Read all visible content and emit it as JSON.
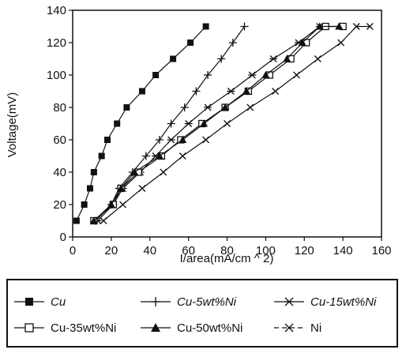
{
  "chart_data": {
    "type": "line",
    "title": "",
    "xlabel": "I/area(mA/cm ^ 2)",
    "ylabel": "Voltage(mV)",
    "xlim": [
      0,
      160
    ],
    "ylim": [
      0,
      140
    ],
    "xticks": [
      0,
      20,
      40,
      60,
      80,
      100,
      120,
      140,
      160
    ],
    "yticks": [
      0,
      20,
      40,
      60,
      80,
      100,
      120,
      140
    ],
    "grid": false,
    "legend_position": "bottom",
    "series": [
      {
        "name": "Cu",
        "marker": "filled-square",
        "points": [
          [
            2,
            10
          ],
          [
            6,
            20
          ],
          [
            9,
            30
          ],
          [
            11,
            40
          ],
          [
            15,
            50
          ],
          [
            18,
            60
          ],
          [
            23,
            70
          ],
          [
            28,
            80
          ],
          [
            36,
            90
          ],
          [
            43,
            100
          ],
          [
            52,
            110
          ],
          [
            61,
            120
          ],
          [
            69,
            130
          ]
        ]
      },
      {
        "name": "Cu-5wt%Ni",
        "marker": "plus",
        "points": [
          [
            12,
            10
          ],
          [
            20,
            20
          ],
          [
            24,
            30
          ],
          [
            31,
            40
          ],
          [
            38,
            50
          ],
          [
            45,
            60
          ],
          [
            51,
            70
          ],
          [
            58,
            80
          ],
          [
            64,
            90
          ],
          [
            70,
            100
          ],
          [
            77,
            110
          ],
          [
            83,
            120
          ],
          [
            89,
            130
          ]
        ]
      },
      {
        "name": "Cu-15wt%Ni",
        "marker": "asterisk",
        "points": [
          [
            13,
            10
          ],
          [
            21,
            20
          ],
          [
            26,
            30
          ],
          [
            35,
            40
          ],
          [
            43,
            50
          ],
          [
            51,
            60
          ],
          [
            60,
            70
          ],
          [
            70,
            80
          ],
          [
            82,
            90
          ],
          [
            93,
            100
          ],
          [
            104,
            110
          ],
          [
            117,
            120
          ],
          [
            128,
            130
          ]
        ]
      },
      {
        "name": "Cu-35wt%Ni",
        "marker": "open-square",
        "points": [
          [
            11,
            10
          ],
          [
            21,
            20
          ],
          [
            25,
            30
          ],
          [
            34,
            40
          ],
          [
            46,
            50
          ],
          [
            56,
            60
          ],
          [
            67,
            70
          ],
          [
            79,
            80
          ],
          [
            91,
            90
          ],
          [
            102,
            100
          ],
          [
            113,
            110
          ],
          [
            121,
            120
          ],
          [
            131,
            130
          ],
          [
            140,
            130
          ]
        ]
      },
      {
        "name": "Cu-50wt%Ni",
        "marker": "filled-triangle",
        "points": [
          [
            11,
            10
          ],
          [
            20,
            20
          ],
          [
            25,
            30
          ],
          [
            32,
            40
          ],
          [
            45,
            50
          ],
          [
            57,
            60
          ],
          [
            68,
            70
          ],
          [
            79,
            80
          ],
          [
            90,
            90
          ],
          [
            100,
            100
          ],
          [
            111,
            110
          ],
          [
            119,
            120
          ],
          [
            128,
            130
          ],
          [
            138,
            130
          ]
        ]
      },
      {
        "name": "Ni",
        "marker": "x",
        "points": [
          [
            16,
            10
          ],
          [
            26,
            20
          ],
          [
            36,
            30
          ],
          [
            47,
            40
          ],
          [
            57,
            50
          ],
          [
            69,
            60
          ],
          [
            80,
            70
          ],
          [
            92,
            80
          ],
          [
            105,
            90
          ],
          [
            116,
            100
          ],
          [
            127,
            110
          ],
          [
            139,
            120
          ],
          [
            147,
            130
          ],
          [
            154,
            130
          ]
        ]
      }
    ]
  }
}
